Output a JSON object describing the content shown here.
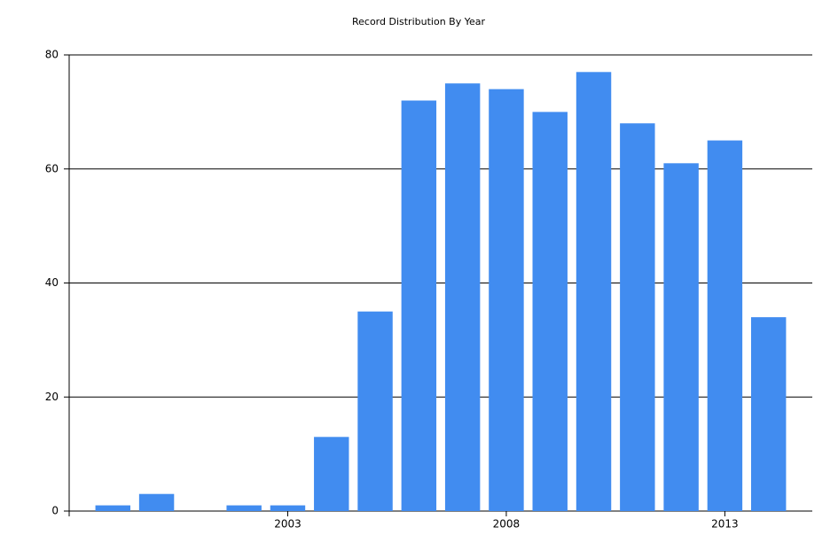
{
  "chart_data": {
    "type": "bar",
    "title": "Record Distribution By Year",
    "x": [
      1999,
      2000,
      2002,
      2003,
      2004,
      2005,
      2006,
      2007,
      2008,
      2009,
      2010,
      2011,
      2012,
      2013,
      2014
    ],
    "values": [
      1,
      3,
      1,
      1,
      13,
      35,
      72,
      75,
      74,
      70,
      77,
      68,
      61,
      65,
      34
    ],
    "color": "#418cf0",
    "xlim": [
      1998,
      2015
    ],
    "xticks": [
      2003,
      2008,
      2013
    ],
    "ylim": [
      0,
      80
    ],
    "yticks": [
      0,
      20,
      40,
      60,
      80
    ],
    "grid": true
  }
}
